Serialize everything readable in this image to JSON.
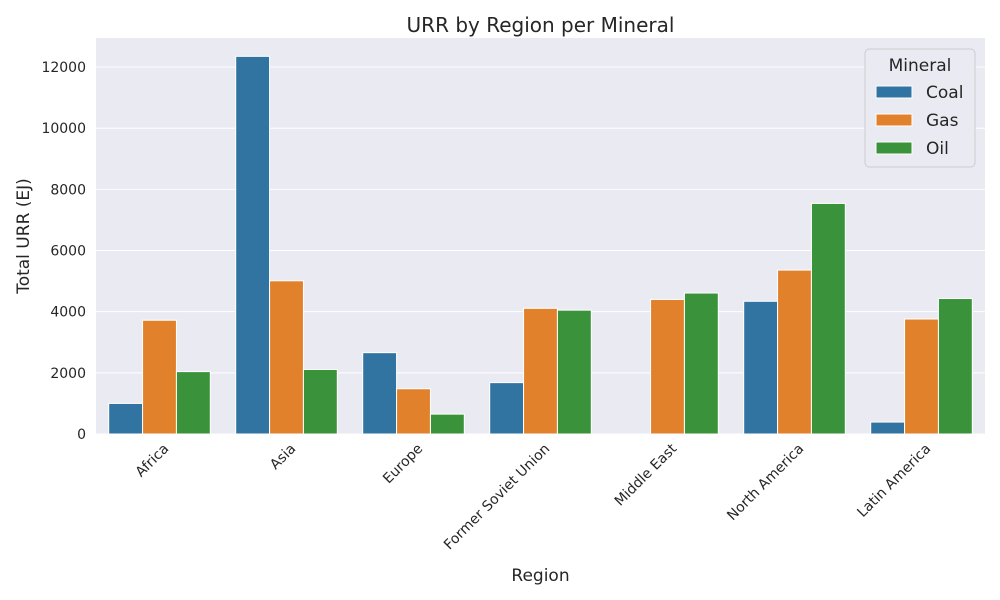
{
  "chart_data": {
    "type": "bar",
    "title": "URR by Region per Mineral",
    "xlabel": "Region",
    "ylabel": "Total URR (EJ)",
    "categories": [
      "Africa",
      "Asia",
      "Europe",
      "Former Soviet Union",
      "Middle East",
      "North America",
      "Latin America"
    ],
    "series": [
      {
        "name": "Coal",
        "color": "#3274a1",
        "values": [
          1000,
          12350,
          2660,
          1680,
          0,
          4340,
          390
        ]
      },
      {
        "name": "Gas",
        "color": "#e1812c",
        "values": [
          3720,
          5010,
          1480,
          4110,
          4400,
          5360,
          3760
        ]
      },
      {
        "name": "Oil",
        "color": "#3a923a",
        "values": [
          2040,
          2110,
          650,
          4050,
          4610,
          7540,
          4430
        ]
      }
    ],
    "ylim": [
      0,
      12950
    ],
    "yticks": [
      0,
      2000,
      4000,
      6000,
      8000,
      10000,
      12000
    ],
    "legend_title": "Mineral",
    "legend_position": "top-right",
    "grid": true,
    "background": "#eaeaf2"
  }
}
